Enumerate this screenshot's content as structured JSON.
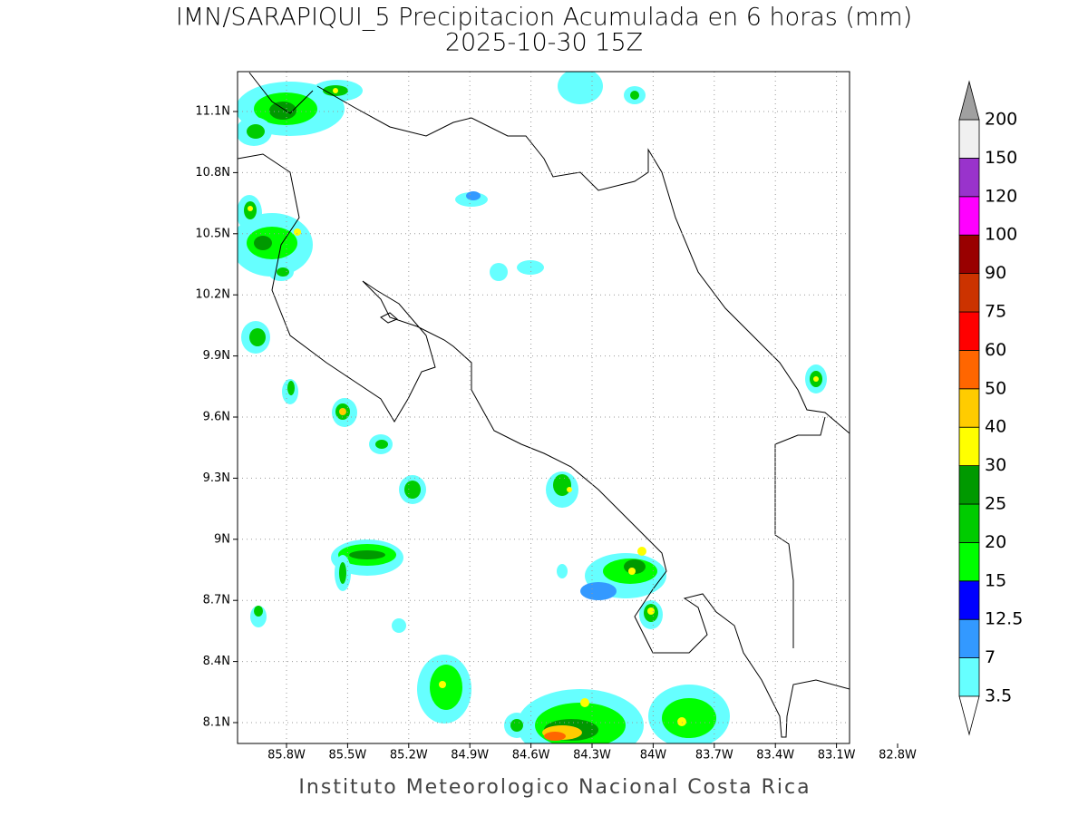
{
  "title": "IMN/SARAPIQUI_5 Precipitacion Acumulada en 6 horas (mm)",
  "subtitle": "2025-10-30 15Z",
  "footer": "Instituto Meteorologico Nacional Costa Rica",
  "map": {
    "lon_labels": [
      "85.8W",
      "85.5W",
      "85.2W",
      "84.9W",
      "84.6W",
      "84.3W",
      "84W",
      "83.7W",
      "83.4W",
      "83.1W",
      "82.8W"
    ],
    "lat_labels": [
      "11.1N",
      "10.8N",
      "10.5N",
      "10.2N",
      "9.9N",
      "9.6N",
      "9.3N",
      "9N",
      "8.7N",
      "8.4N",
      "8.1N"
    ],
    "grid": true
  },
  "colorbar": {
    "levels": [
      3.5,
      7,
      12.5,
      15,
      20,
      25,
      30,
      40,
      50,
      60,
      75,
      90,
      100,
      120,
      150,
      200
    ],
    "under_color": "#ffffff",
    "colors": [
      "#66ffff",
      "#3399ff",
      "#0000ff",
      "#00ff00",
      "#00cc00",
      "#009900",
      "#ffff00",
      "#ffcc00",
      "#ff6600",
      "#ff0000",
      "#cc3300",
      "#990000",
      "#ff00ff",
      "#9933cc",
      "#f0f0f0"
    ],
    "over_color": "#a0a0a0"
  }
}
